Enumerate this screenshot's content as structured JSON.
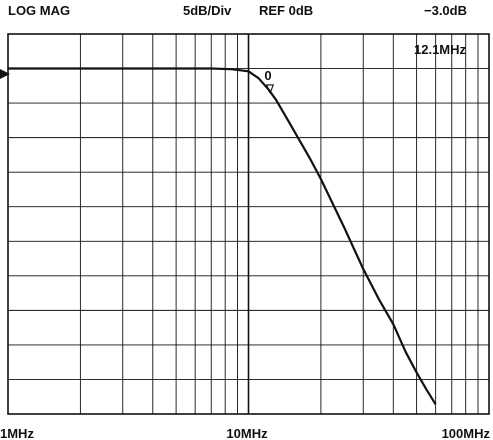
{
  "chart_data": {
    "type": "line",
    "header": {
      "format": "LOG MAG",
      "scale": "5dB/Div",
      "reference": "REF 0dB",
      "marker_value": "−3.0dB",
      "marker_freq": "12.1MHz"
    },
    "x_scale": "log",
    "x_range_hz": [
      1000000,
      100000000
    ],
    "x_tick_labels": [
      "1MHz",
      "10MHz",
      "100MHz"
    ],
    "y_range_db": [
      -50,
      5
    ],
    "y_major_div_db": 5,
    "grid": true,
    "reference_label": "0",
    "marker_symbol": "∇",
    "series": [
      {
        "x_hz": [
          1000000,
          2000000,
          5000000,
          7000000,
          8500000,
          10000000,
          11000000,
          12100000,
          13000000,
          15000000,
          18000000,
          20000000,
          25000000,
          30000000,
          35000000,
          40000000,
          45000000,
          50000000,
          55000000,
          60000000
        ],
        "y_db": [
          0,
          0,
          0,
          0,
          -0.1,
          -0.4,
          -1.4,
          -3.0,
          -4.5,
          -8.2,
          -13.0,
          -16.0,
          -23.0,
          -29.0,
          -33.5,
          -37.0,
          -41.0,
          -44.0,
          -46.5,
          -48.6
        ]
      }
    ],
    "colors": {
      "trace": "#111111",
      "grid": "#111111",
      "background": "#ffffff"
    }
  }
}
